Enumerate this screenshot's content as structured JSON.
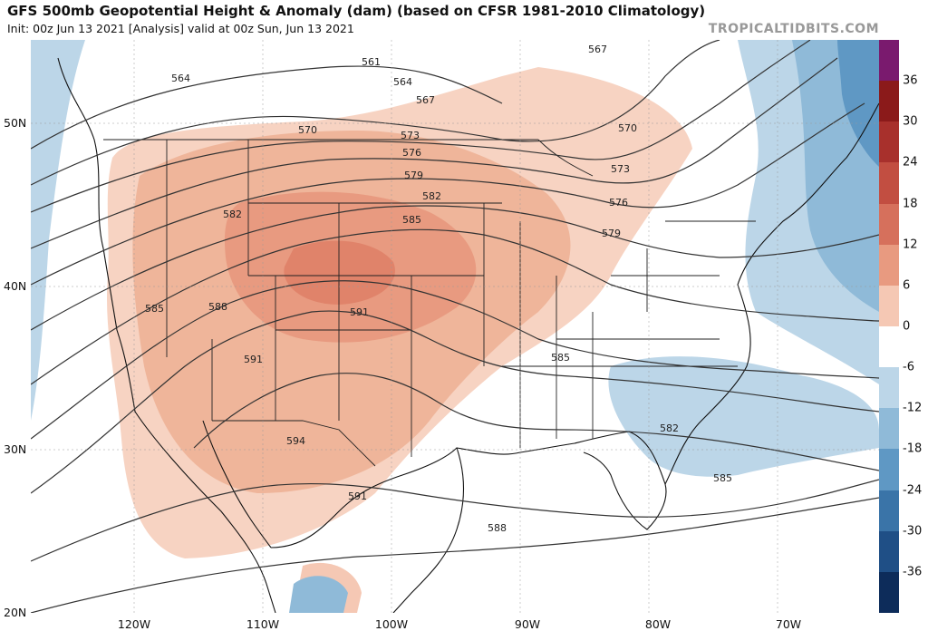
{
  "header": {
    "title": "GFS 500mb Geopotential Height & Anomaly (dam) (based on CFSR 1981-2010 Climatology)",
    "subtitle": "Init: 00z Jun 13 2021   [Analysis]   valid at 00z Sun, Jun 13 2021",
    "brand": "TROPICALTIDBITS.COM"
  },
  "axes": {
    "lat_labels": [
      "50N",
      "40N",
      "30N",
      "20N"
    ],
    "lon_labels": [
      "120W",
      "110W",
      "100W",
      "90W",
      "80W",
      "70W"
    ]
  },
  "colorbar": {
    "labels": [
      "36",
      "30",
      "24",
      "18",
      "12",
      "6",
      "0",
      "-6",
      "-12",
      "-18",
      "-24",
      "-30",
      "-36"
    ],
    "colors": [
      "#7a1a6e",
      "#8b1a1a",
      "#a8302c",
      "#c24e41",
      "#d6705c",
      "#e89a80",
      "#f5c8b4",
      "#ffffff",
      "#bcd6e8",
      "#8fbad8",
      "#5f98c4",
      "#3a74a8",
      "#1f4f86",
      "#0d2c5a"
    ]
  },
  "contours": {
    "labels": [
      "564",
      "561",
      "564",
      "567",
      "567",
      "570",
      "570",
      "573",
      "573",
      "576",
      "576",
      "579",
      "579",
      "582",
      "582",
      "582",
      "585",
      "585",
      "585",
      "585",
      "588",
      "588",
      "591",
      "591",
      "591",
      "594"
    ]
  }
}
